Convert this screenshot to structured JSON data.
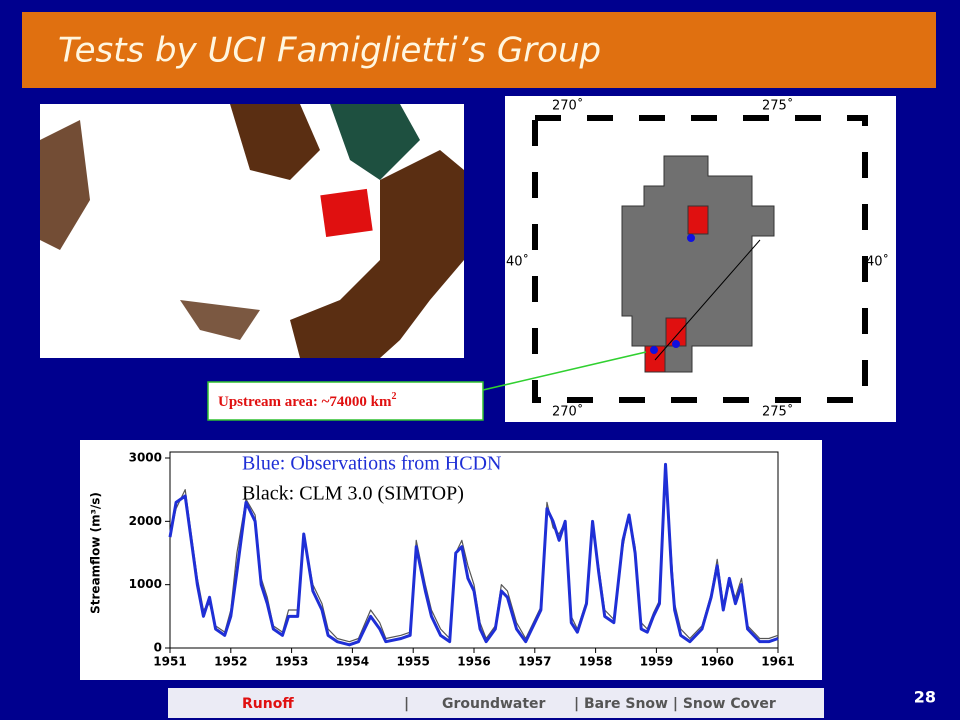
{
  "title": "Tests by UCI Famiglietti’s Group",
  "map_labels": {
    "lon_left": "270˚",
    "lon_right": "275˚",
    "lat_left": "40˚",
    "lat_right": "40˚"
  },
  "annotation": {
    "text": "Upstream area: ~74000 km",
    "sup": "2"
  },
  "chart_data": {
    "type": "line",
    "legend_lines": [
      "Blue: Observations from HCDN",
      "Black: CLM 3.0 (SIMTOP)"
    ],
    "ylabel": "Streamflow (m³/s)",
    "x": [
      1951.0,
      1951.1,
      1951.25,
      1951.45,
      1951.55,
      1951.65,
      1951.75,
      1951.9,
      1952.0,
      1952.1,
      1952.25,
      1952.4,
      1952.5,
      1952.6,
      1952.7,
      1952.85,
      1952.95,
      1953.1,
      1953.2,
      1953.35,
      1953.5,
      1953.6,
      1953.75,
      1953.95,
      1954.1,
      1954.3,
      1954.45,
      1954.55,
      1954.8,
      1954.95,
      1955.05,
      1955.2,
      1955.3,
      1955.45,
      1955.6,
      1955.7,
      1955.8,
      1955.9,
      1956.0,
      1956.1,
      1956.2,
      1956.35,
      1956.45,
      1956.55,
      1956.7,
      1956.85,
      1957.0,
      1957.1,
      1957.2,
      1957.3,
      1957.4,
      1957.5,
      1957.6,
      1957.7,
      1957.85,
      1957.95,
      1958.05,
      1958.15,
      1958.3,
      1958.45,
      1958.55,
      1958.65,
      1958.75,
      1958.85,
      1958.95,
      1959.05,
      1959.15,
      1959.25,
      1959.3,
      1959.4,
      1959.55,
      1959.75,
      1959.9,
      1960.0,
      1960.1,
      1960.2,
      1960.3,
      1960.4,
      1960.5,
      1960.7,
      1960.85,
      1961.0
    ],
    "series": [
      {
        "color": "#555555",
        "values": [
          1750,
          2200,
          2500,
          1100,
          600,
          700,
          350,
          250,
          600,
          1500,
          2350,
          2100,
          1100,
          800,
          350,
          250,
          600,
          600,
          1800,
          1000,
          700,
          300,
          150,
          100,
          150,
          600,
          400,
          150,
          200,
          250,
          1700,
          1000,
          600,
          300,
          150,
          1500,
          1700,
          1300,
          1000,
          400,
          150,
          350,
          1000,
          900,
          400,
          150,
          450,
          650,
          2300,
          1900,
          1800,
          2000,
          500,
          300,
          750,
          1900,
          1300,
          600,
          450,
          1600,
          2100,
          1600,
          400,
          300,
          550,
          750,
          2900,
          1400,
          700,
          300,
          150,
          350,
          850,
          1400,
          700,
          1000,
          800,
          1100,
          350,
          150,
          150,
          200
        ]
      },
      {
        "color": "#1f2fd6",
        "values": [
          1750,
          2300,
          2400,
          1000,
          500,
          800,
          300,
          200,
          500,
          1200,
          2300,
          2000,
          1000,
          700,
          300,
          200,
          500,
          500,
          1800,
          900,
          600,
          200,
          100,
          50,
          100,
          500,
          300,
          100,
          150,
          200,
          1600,
          900,
          500,
          200,
          100,
          1500,
          1600,
          1100,
          900,
          300,
          100,
          300,
          900,
          800,
          300,
          100,
          400,
          600,
          2200,
          2000,
          1700,
          2000,
          400,
          250,
          700,
          2000,
          1200,
          500,
          400,
          1700,
          2100,
          1500,
          300,
          250,
          500,
          700,
          2900,
          1200,
          600,
          200,
          100,
          300,
          800,
          1300,
          600,
          1100,
          700,
          1000,
          300,
          100,
          100,
          150
        ]
      }
    ],
    "xlim": [
      1951,
      1961
    ],
    "ylim": [
      0,
      3000
    ],
    "xticks": [
      1951,
      1952,
      1953,
      1954,
      1955,
      1956,
      1957,
      1958,
      1959,
      1960,
      1961
    ],
    "yticks": [
      0,
      1000,
      2000,
      3000
    ]
  },
  "footer": [
    "Runoff",
    "|",
    "Groundwater",
    "| Bare Snow | Snow Cover"
  ],
  "page_number": "28"
}
